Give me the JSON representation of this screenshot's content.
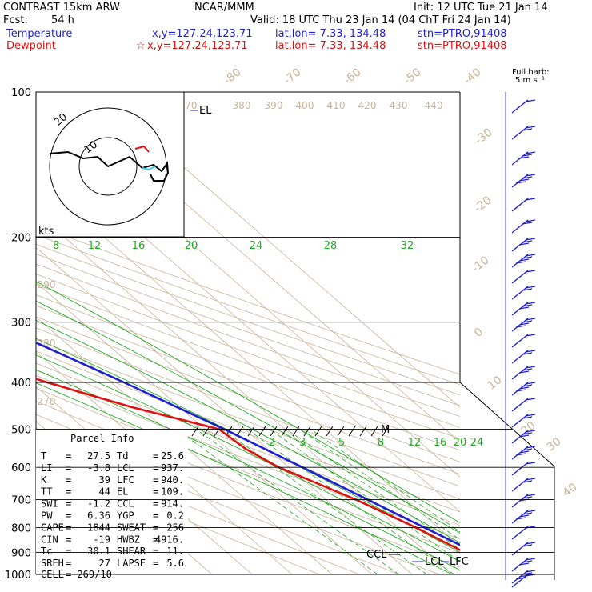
{
  "header": {
    "model": "CONTRAST 15km ARW",
    "center": "NCAR/MMM",
    "init": "Init: 12 UTC Tue 21 Jan 14",
    "fcst_label": "Fcst:",
    "fcst_value": "54 h",
    "valid": "Valid: 18 UTC Thu 23 Jan 14 (04 ChT Fri 24 Jan 14)",
    "temp_label": "Temperature",
    "temp_xy": "x,y=127.24,123.71",
    "temp_latlon": "lat,lon=  7.33, 134.48",
    "temp_stn": "stn=PTRO,91408",
    "dew_label": "Dewpoint",
    "dew_xy": "x,y=127.24,123.71",
    "dew_latlon": "lat,lon=  7.33, 134.48",
    "dew_stn": "stn=PTRO,91408",
    "barb_label1": "Full barb:",
    "barb_label2": "5 m s⁻¹"
  },
  "chart_data": {
    "type": "line",
    "title": "Skew-T log-P sounding",
    "pressure_levels": [
      100,
      200,
      300,
      400,
      500,
      600,
      700,
      800,
      900,
      1000
    ],
    "pressure_labels": [
      "100",
      "200",
      "300",
      "400",
      "500",
      "600",
      "700",
      "800",
      "900",
      "1000"
    ],
    "isotherm_labels": [
      "-80",
      "-70",
      "-60",
      "-50",
      "-40",
      "-30",
      "-20",
      "-10",
      "0",
      "10",
      "20",
      "30",
      "40"
    ],
    "mixing_ratio_labels_upper": [
      "8",
      "12",
      "16",
      "20",
      "24",
      "28",
      "32"
    ],
    "mixing_ratio_labels_lower": [
      "2",
      "3",
      "5",
      "8",
      "12",
      "16",
      "20",
      "24"
    ],
    "theta_labels_top": [
      "370",
      "380",
      "390",
      "400",
      "410",
      "420",
      "430",
      "440"
    ],
    "theta_labels_left": [
      "290",
      "280",
      "270"
    ],
    "el_label": "EL",
    "ccl_label": "CCL",
    "lcl_label": "LCL",
    "lfc_label": "LFC",
    "m_label": "M",
    "series": [
      {
        "name": "Temperature",
        "color": "#1f1fd0",
        "p": [
          1000,
          950,
          925,
          900,
          850,
          800,
          700,
          600,
          500,
          400,
          300,
          250,
          200,
          150,
          110,
          100
        ],
        "t": [
          27.5,
          24.8,
          23.6,
          22.2,
          19.4,
          16.6,
          10.4,
          3.4,
          -5.2,
          -16.8,
          -32.8,
          -42.0,
          -53.5,
          -68.0,
          -84.0,
          -83.0
        ]
      },
      {
        "name": "Dewpoint",
        "color": "#e01010",
        "p": [
          1000,
          950,
          925,
          900,
          850,
          800,
          700,
          600,
          550,
          500,
          450,
          400,
          350,
          300,
          250,
          200,
          150,
          120,
          100
        ],
        "t": [
          25.6,
          23.0,
          20.5,
          19.5,
          17.0,
          14.5,
          7.5,
          -2.5,
          -5.5,
          -6.5,
          -22.0,
          -36.0,
          -50.0,
          -60.0,
          -68.0,
          -77.0,
          -80.0,
          -88.0,
          -88.0
        ]
      }
    ],
    "hodograph": {
      "rings": [
        "10",
        "20"
      ],
      "axis_label": "kts"
    },
    "grid": true
  },
  "parcel_info": {
    "title": "Parcel Info",
    "rows": [
      {
        "k1": "T",
        "v1": "27.5",
        "k2": "Td",
        "v2": "25.6"
      },
      {
        "k1": "LI",
        "v1": "-3.8",
        "k2": "LCL",
        "v2": "937."
      },
      {
        "k1": "K",
        "v1": "39",
        "k2": "LFC",
        "v2": "940."
      },
      {
        "k1": "TT",
        "v1": "44",
        "k2": "EL",
        "v2": "109."
      },
      {
        "k1": "SWI",
        "v1": "-1.2",
        "k2": "CCL",
        "v2": "914."
      },
      {
        "k1": "PW",
        "v1": "6.36",
        "k2": "YGP",
        "v2": "0.2"
      },
      {
        "k1": "CAPE",
        "v1": "1844",
        "k2": "SWEAT",
        "v2": "256"
      },
      {
        "k1": "CIN",
        "v1": "-19",
        "k2": "HWBZ",
        "v2": "4916."
      },
      {
        "k1": "Tc",
        "v1": "30.1",
        "k2": "SHEAR",
        "v2": "11."
      },
      {
        "k1": "SREH",
        "v1": "27",
        "k2": "LAPSE",
        "v2": "5.6"
      }
    ],
    "cell_label": "CELL",
    "cell_value": "269/10"
  }
}
